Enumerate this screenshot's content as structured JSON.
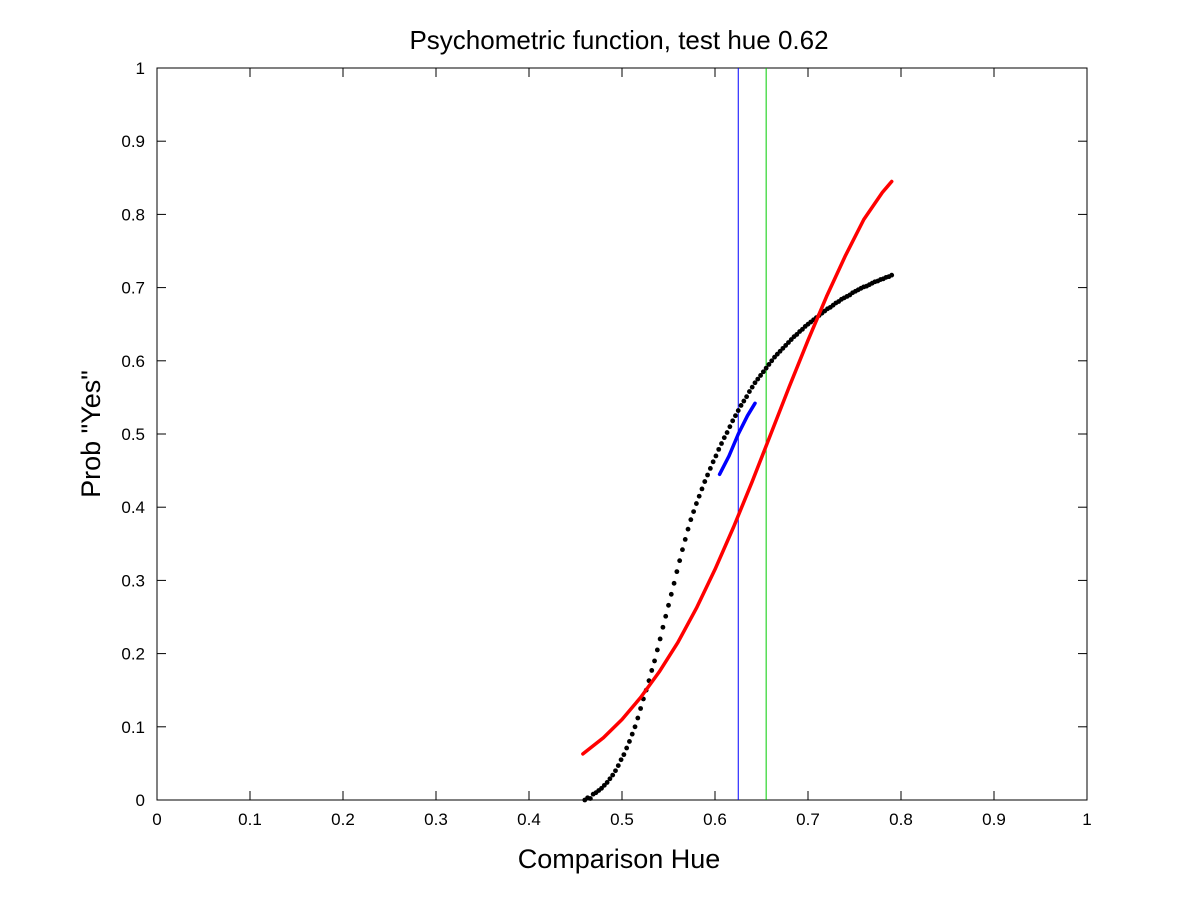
{
  "chart_data": {
    "type": "scatter",
    "title": "Psychometric function, test hue 0.62",
    "xlabel": "Comparison Hue",
    "ylabel": "Prob \"Yes\"",
    "xlim": [
      0,
      1
    ],
    "ylim": [
      0,
      1
    ],
    "xticks": [
      "0",
      "0.1",
      "0.2",
      "0.3",
      "0.4",
      "0.5",
      "0.6",
      "0.7",
      "0.8",
      "0.9",
      "1"
    ],
    "yticks": [
      "0",
      "0.1",
      "0.2",
      "0.3",
      "0.4",
      "0.5",
      "0.6",
      "0.7",
      "0.8",
      "0.9",
      "1"
    ],
    "grid": false,
    "colors": {
      "points": "#000000",
      "fit_curve": "#ff0000",
      "local_slope": "#0000ff",
      "test_line": "#0000ff",
      "pse_line": "#00cc00"
    },
    "series": [
      {
        "kind": "points",
        "x": [
          0.46,
          0.463,
          0.466,
          0.469,
          0.472,
          0.475,
          0.478,
          0.481,
          0.484,
          0.487,
          0.49,
          0.493,
          0.496,
          0.499,
          0.502,
          0.505,
          0.508,
          0.511,
          0.514,
          0.517,
          0.52,
          0.523,
          0.526,
          0.529,
          0.532,
          0.535,
          0.538,
          0.541,
          0.544,
          0.547,
          0.55,
          0.553,
          0.556,
          0.559,
          0.562,
          0.565,
          0.568,
          0.571,
          0.574,
          0.577,
          0.58,
          0.583,
          0.586,
          0.589,
          0.592,
          0.595,
          0.598,
          0.601,
          0.604,
          0.607,
          0.61,
          0.613,
          0.616,
          0.619,
          0.622,
          0.625,
          0.628,
          0.631,
          0.634,
          0.637,
          0.64,
          0.643,
          0.646,
          0.649,
          0.652,
          0.655,
          0.658,
          0.661,
          0.664,
          0.667,
          0.67,
          0.673,
          0.676,
          0.679,
          0.682,
          0.685,
          0.688,
          0.691,
          0.694,
          0.697,
          0.7,
          0.703,
          0.706,
          0.709,
          0.712,
          0.715,
          0.718,
          0.721,
          0.724,
          0.727,
          0.73,
          0.733,
          0.736,
          0.739,
          0.742,
          0.745,
          0.748,
          0.751,
          0.754,
          0.757,
          0.76,
          0.763,
          0.766,
          0.769,
          0.772,
          0.775,
          0.778,
          0.781,
          0.784,
          0.787,
          0.79
        ],
        "y": [
          0.0,
          0.003,
          0.002,
          0.008,
          0.01,
          0.013,
          0.016,
          0.02,
          0.024,
          0.029,
          0.034,
          0.04,
          0.047,
          0.055,
          0.062,
          0.071,
          0.08,
          0.09,
          0.1,
          0.112,
          0.125,
          0.138,
          0.15,
          0.163,
          0.177,
          0.19,
          0.205,
          0.22,
          0.236,
          0.251,
          0.266,
          0.281,
          0.296,
          0.312,
          0.327,
          0.342,
          0.356,
          0.37,
          0.383,
          0.394,
          0.405,
          0.415,
          0.425,
          0.435,
          0.444,
          0.453,
          0.462,
          0.47,
          0.479,
          0.487,
          0.495,
          0.502,
          0.51,
          0.518,
          0.525,
          0.532,
          0.539,
          0.545,
          0.551,
          0.558,
          0.564,
          0.57,
          0.575,
          0.58,
          0.585,
          0.59,
          0.595,
          0.6,
          0.605,
          0.609,
          0.613,
          0.617,
          0.621,
          0.625,
          0.629,
          0.633,
          0.636,
          0.64,
          0.643,
          0.647,
          0.65,
          0.653,
          0.656,
          0.659,
          0.662,
          0.665,
          0.668,
          0.671,
          0.673,
          0.676,
          0.679,
          0.681,
          0.684,
          0.686,
          0.688,
          0.69,
          0.693,
          0.695,
          0.697,
          0.699,
          0.701,
          0.702,
          0.704,
          0.706,
          0.708,
          0.709,
          0.711,
          0.712,
          0.714,
          0.715,
          0.717
        ]
      },
      {
        "kind": "fit",
        "x": [
          0.458,
          0.48,
          0.5,
          0.52,
          0.54,
          0.56,
          0.58,
          0.6,
          0.62,
          0.64,
          0.66,
          0.68,
          0.7,
          0.72,
          0.74,
          0.76,
          0.78,
          0.79
        ],
        "y": [
          0.063,
          0.085,
          0.11,
          0.14,
          0.175,
          0.215,
          0.262,
          0.315,
          0.373,
          0.435,
          0.5,
          0.565,
          0.628,
          0.688,
          0.743,
          0.793,
          0.83,
          0.845
        ]
      },
      {
        "kind": "slope",
        "x": [
          0.605,
          0.615,
          0.625,
          0.635,
          0.643
        ],
        "y": [
          0.445,
          0.47,
          0.5,
          0.525,
          0.542
        ]
      }
    ],
    "vlines": [
      {
        "kind": "test",
        "x": 0.625
      },
      {
        "kind": "pse",
        "x": 0.655
      }
    ]
  }
}
